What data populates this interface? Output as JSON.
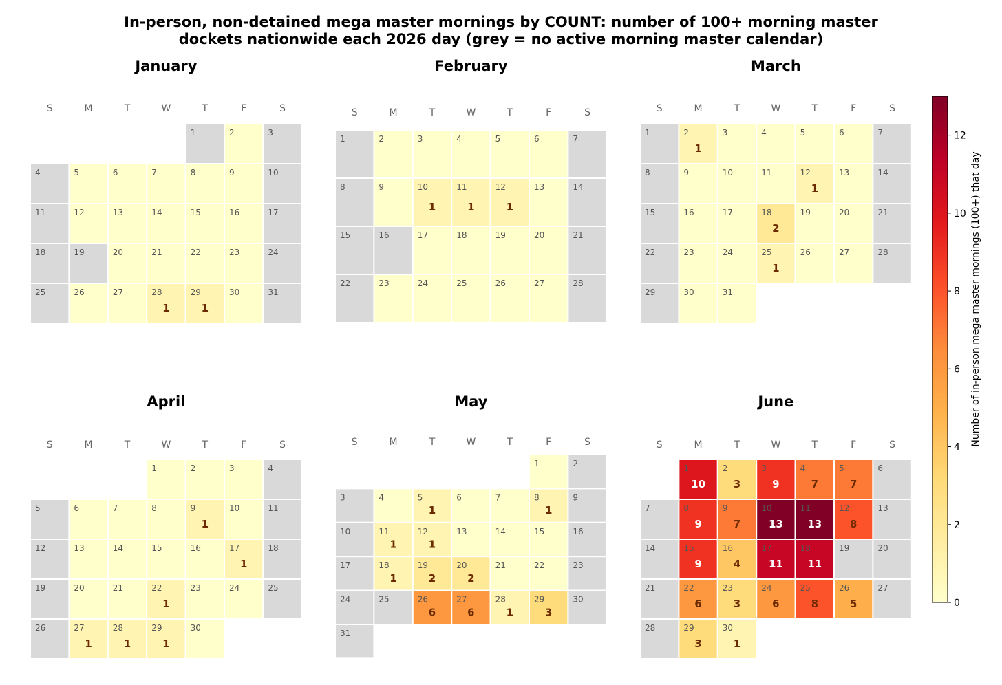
{
  "title_line1": "In-person, non-detained mega master mornings by COUNT: number of 100+ morning master",
  "title_line2": "dockets nationwide each 2026 day  (grey = no active morning master calendar)",
  "weekday_headers": [
    "S",
    "M",
    "T",
    "W",
    "T",
    "F",
    "S"
  ],
  "colorbar": {
    "label": "Number of in-person mega master mornings (100+) that day",
    "ticks": [
      0,
      2,
      4,
      6,
      8,
      10,
      12
    ],
    "min": 0,
    "max": 13,
    "colormap": "YlOrRd",
    "colormap_stops": [
      "#ffffcc",
      "#ffeda0",
      "#fed976",
      "#feb24c",
      "#fd8d3c",
      "#fc4e2a",
      "#e31a1c",
      "#bd0026",
      "#800026"
    ],
    "no_calendar_color": "#d9d9d9"
  },
  "chart_data": [
    {
      "type": "heatmap",
      "month": "January",
      "first_weekday": 4,
      "days": 31,
      "no_calendar_days": [
        1,
        3,
        4,
        10,
        11,
        17,
        18,
        19,
        24,
        25,
        31
      ],
      "counts": {
        "28": 1,
        "29": 1
      }
    },
    {
      "type": "heatmap",
      "month": "February",
      "first_weekday": 0,
      "days": 28,
      "no_calendar_days": [
        1,
        7,
        8,
        14,
        15,
        16,
        21,
        22,
        28
      ],
      "counts": {
        "10": 1,
        "11": 1,
        "12": 1
      }
    },
    {
      "type": "heatmap",
      "month": "March",
      "first_weekday": 0,
      "days": 31,
      "no_calendar_days": [
        1,
        7,
        8,
        14,
        15,
        21,
        22,
        28,
        29
      ],
      "counts": {
        "2": 1,
        "12": 1,
        "18": 2,
        "25": 1
      }
    },
    {
      "type": "heatmap",
      "month": "April",
      "first_weekday": 3,
      "days": 30,
      "no_calendar_days": [
        4,
        5,
        11,
        12,
        18,
        19,
        25,
        26
      ],
      "counts": {
        "9": 1,
        "17": 1,
        "22": 1,
        "27": 1,
        "28": 1,
        "29": 1
      }
    },
    {
      "type": "heatmap",
      "month": "May",
      "first_weekday": 5,
      "days": 31,
      "no_calendar_days": [
        2,
        3,
        9,
        10,
        16,
        17,
        23,
        24,
        25,
        30,
        31
      ],
      "counts": {
        "5": 1,
        "8": 1,
        "11": 1,
        "12": 1,
        "18": 1,
        "19": 2,
        "20": 2,
        "26": 6,
        "27": 6,
        "28": 1,
        "29": 3
      }
    },
    {
      "type": "heatmap",
      "month": "June",
      "first_weekday": 1,
      "days": 30,
      "no_calendar_days": [
        6,
        7,
        13,
        14,
        19,
        20,
        21,
        27,
        28
      ],
      "counts": {
        "1": 10,
        "2": 3,
        "3": 9,
        "4": 7,
        "5": 7,
        "8": 9,
        "9": 7,
        "10": 13,
        "11": 13,
        "12": 8,
        "15": 9,
        "16": 4,
        "17": 11,
        "18": 11,
        "22": 6,
        "23": 3,
        "24": 6,
        "25": 8,
        "26": 5,
        "29": 3,
        "30": 1
      }
    }
  ]
}
